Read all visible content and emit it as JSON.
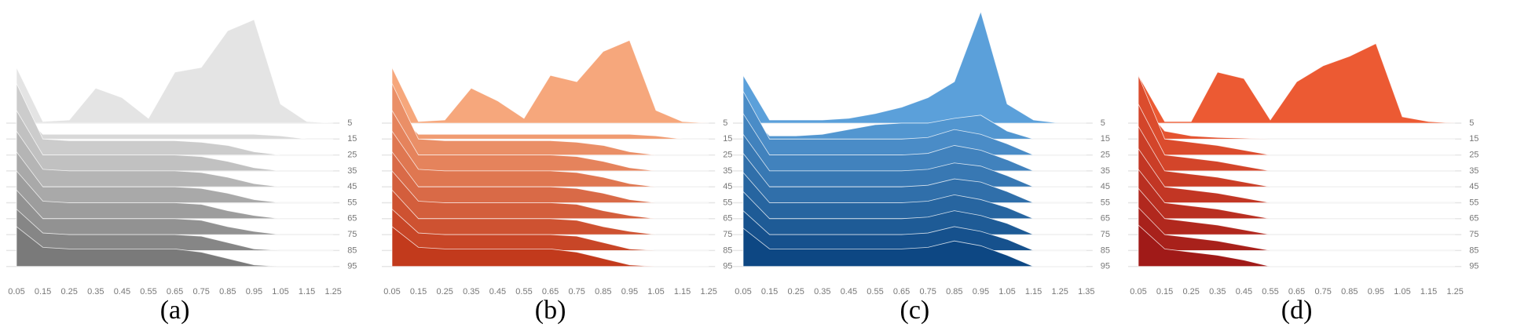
{
  "chart_data": [
    {
      "type": "ridgeline",
      "caption": "(a)",
      "colors": [
        "#e4e4e4",
        "#7a7a7a"
      ],
      "grid": true,
      "x": [
        0.05,
        0.15,
        0.25,
        0.35,
        0.45,
        0.55,
        0.65,
        0.75,
        0.85,
        0.95,
        1.05,
        1.15,
        1.25
      ],
      "xlim": [
        0.05,
        1.25
      ],
      "rows": [
        5,
        15,
        25,
        35,
        45,
        55,
        65,
        75,
        85,
        95
      ],
      "ridges": [
        [
          3.5,
          0.1,
          0.2,
          2.2,
          1.6,
          0.3,
          3.2,
          3.5,
          5.8,
          6.5,
          1.2,
          0.1,
          0
        ],
        [
          2,
          0.3,
          0.3,
          0.3,
          0.3,
          0.3,
          0.3,
          0.3,
          0.3,
          0.3,
          0.2,
          0,
          0
        ],
        [
          4.5,
          1,
          0.9,
          0.9,
          0.9,
          0.9,
          0.9,
          0.8,
          0.6,
          0.2,
          0,
          0,
          0
        ],
        [
          3.8,
          1,
          1,
          1,
          1,
          1,
          1,
          0.9,
          0.6,
          0.2,
          0,
          0,
          0
        ],
        [
          3.5,
          1.1,
          1,
          1,
          1,
          1,
          1,
          0.9,
          0.6,
          0.2,
          0,
          0,
          0
        ],
        [
          3.2,
          1,
          1,
          1,
          1,
          1,
          1,
          0.9,
          0.6,
          0.2,
          0,
          0,
          0
        ],
        [
          3,
          1.1,
          1,
          1,
          1,
          1,
          1,
          0.9,
          0.5,
          0.2,
          0,
          0,
          0
        ],
        [
          2.8,
          1,
          1,
          1,
          1,
          1,
          1,
          0.9,
          0.5,
          0.2,
          0,
          0,
          0
        ],
        [
          2.6,
          1.1,
          1,
          1,
          1,
          1,
          1,
          0.9,
          0.5,
          0.1,
          0,
          0,
          0
        ],
        [
          2.5,
          1.2,
          1.1,
          1.1,
          1.1,
          1.1,
          1.1,
          0.9,
          0.5,
          0.1,
          0,
          0,
          0
        ]
      ]
    },
    {
      "type": "ridgeline",
      "caption": "(b)",
      "colors": [
        "#f6a77c",
        "#c23a1c"
      ],
      "grid": true,
      "x": [
        0.05,
        0.15,
        0.25,
        0.35,
        0.45,
        0.55,
        0.65,
        0.75,
        0.85,
        0.95,
        1.05,
        1.15,
        1.25
      ],
      "xlim": [
        0.05,
        1.25
      ],
      "rows": [
        5,
        15,
        25,
        35,
        45,
        55,
        65,
        75,
        85,
        95
      ],
      "ridges": [
        [
          3.5,
          0.1,
          0.2,
          2.2,
          1.4,
          0.3,
          3,
          2.6,
          4.5,
          5.2,
          0.8,
          0.1,
          0
        ],
        [
          2,
          0.3,
          0.3,
          0.3,
          0.3,
          0.3,
          0.3,
          0.3,
          0.3,
          0.3,
          0.2,
          0,
          0
        ],
        [
          4.5,
          1,
          0.9,
          0.9,
          0.9,
          0.9,
          0.9,
          0.8,
          0.6,
          0.2,
          0,
          0,
          0
        ],
        [
          3.8,
          1,
          1,
          1,
          1,
          1,
          1,
          0.9,
          0.6,
          0.2,
          0,
          0,
          0
        ],
        [
          3.5,
          1.1,
          1,
          1,
          1,
          1,
          1,
          0.9,
          0.6,
          0.2,
          0,
          0,
          0
        ],
        [
          3.2,
          1,
          1,
          1,
          1,
          1,
          1,
          0.9,
          0.6,
          0.2,
          0,
          0,
          0
        ],
        [
          3,
          1.1,
          1,
          1,
          1,
          1,
          1,
          0.9,
          0.5,
          0.2,
          0,
          0,
          0
        ],
        [
          2.8,
          1,
          1,
          1,
          1,
          1,
          1,
          0.9,
          0.5,
          0.2,
          0,
          0,
          0
        ],
        [
          2.6,
          1.1,
          1,
          1,
          1,
          1,
          1,
          0.9,
          0.5,
          0.1,
          0,
          0,
          0
        ],
        [
          2.5,
          1.2,
          1.1,
          1.1,
          1.1,
          1.1,
          1.1,
          0.9,
          0.5,
          0.1,
          0,
          0,
          0
        ]
      ]
    },
    {
      "type": "ridgeline",
      "caption": "(c)",
      "colors": [
        "#5ba0da",
        "#0d4783"
      ],
      "grid": true,
      "x": [
        0.05,
        0.15,
        0.25,
        0.35,
        0.45,
        0.55,
        0.65,
        0.75,
        0.85,
        0.95,
        1.05,
        1.15,
        1.25,
        1.35
      ],
      "xlim": [
        0.05,
        1.35
      ],
      "rows": [
        5,
        15,
        25,
        35,
        45,
        55,
        65,
        75,
        85,
        95
      ],
      "ridges": [
        [
          3,
          0.2,
          0.2,
          0.2,
          0.3,
          0.6,
          1,
          1.6,
          2.6,
          7,
          1.2,
          0.2,
          0,
          0
        ],
        [
          2,
          0.2,
          0.2,
          0.3,
          0.6,
          0.9,
          1,
          1,
          1.3,
          1.5,
          0.5,
          0,
          0,
          0
        ],
        [
          4,
          1,
          1,
          1,
          1,
          1,
          1,
          1.1,
          1.6,
          1.3,
          0.7,
          0,
          0,
          0
        ],
        [
          3.6,
          1,
          1,
          1,
          1,
          1,
          1,
          1.1,
          1.6,
          1.3,
          0.7,
          0,
          0,
          0
        ],
        [
          3.3,
          1,
          1,
          1,
          1,
          1,
          1,
          1.1,
          1.5,
          1.3,
          0.7,
          0,
          0,
          0
        ],
        [
          3.1,
          1,
          1,
          1,
          1,
          1,
          1,
          1.1,
          1.5,
          1.3,
          0.7,
          0,
          0,
          0
        ],
        [
          2.9,
          1,
          1,
          1,
          1,
          1,
          1,
          1.1,
          1.5,
          1.2,
          0.7,
          0,
          0,
          0
        ],
        [
          2.7,
          1,
          1,
          1,
          1,
          1,
          1,
          1.1,
          1.5,
          1.2,
          0.7,
          0,
          0,
          0
        ],
        [
          2.5,
          1,
          1,
          1,
          1,
          1,
          1,
          1.1,
          1.5,
          1.2,
          0.7,
          0,
          0,
          0
        ],
        [
          2.4,
          1.1,
          1.1,
          1.1,
          1.1,
          1.1,
          1.1,
          1.2,
          1.6,
          1.3,
          0.7,
          0,
          0,
          0
        ]
      ]
    },
    {
      "type": "ridgeline",
      "caption": "(d)",
      "colors": [
        "#ec5a33",
        "#a01a18"
      ],
      "grid": true,
      "x": [
        0.05,
        0.15,
        0.25,
        0.35,
        0.45,
        0.55,
        0.65,
        0.75,
        0.85,
        0.95,
        1.05,
        1.15,
        1.25
      ],
      "xlim": [
        0.05,
        1.25
      ],
      "rows": [
        5,
        15,
        25,
        35,
        45,
        55,
        65,
        75,
        85,
        95
      ],
      "ridges": [
        [
          3,
          0.1,
          0.1,
          3.2,
          2.8,
          0.2,
          2.6,
          3.6,
          4.2,
          5,
          0.4,
          0.1,
          0
        ],
        [
          2.5,
          0.5,
          0.2,
          0.1,
          0.05,
          0,
          0,
          0,
          0,
          0,
          0,
          0,
          0
        ],
        [
          5,
          1,
          0.8,
          0.6,
          0.3,
          0,
          0,
          0,
          0,
          0,
          0,
          0,
          0
        ],
        [
          4.2,
          1,
          0.8,
          0.6,
          0.3,
          0,
          0,
          0,
          0,
          0,
          0,
          0,
          0
        ],
        [
          3.8,
          1,
          0.8,
          0.6,
          0.3,
          0,
          0,
          0,
          0,
          0,
          0,
          0,
          0
        ],
        [
          3.4,
          1,
          0.8,
          0.6,
          0.3,
          0,
          0,
          0,
          0,
          0,
          0,
          0,
          0
        ],
        [
          3.1,
          1,
          0.8,
          0.6,
          0.3,
          0,
          0,
          0,
          0,
          0,
          0,
          0,
          0
        ],
        [
          2.9,
          1,
          0.8,
          0.6,
          0.3,
          0,
          0,
          0,
          0,
          0,
          0,
          0,
          0
        ],
        [
          2.7,
          1,
          0.8,
          0.6,
          0.3,
          0,
          0,
          0,
          0,
          0,
          0,
          0,
          0
        ],
        [
          2.6,
          1.1,
          0.9,
          0.7,
          0.4,
          0,
          0,
          0,
          0,
          0,
          0,
          0,
          0
        ]
      ]
    }
  ]
}
